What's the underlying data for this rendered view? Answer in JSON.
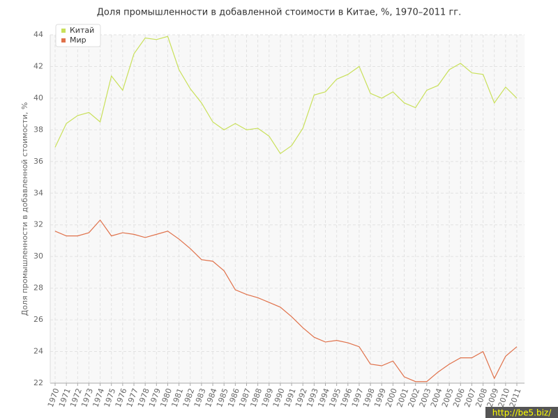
{
  "chart_data": {
    "type": "line",
    "title": "Доля промышленности в добавленной стоимости в Китае, %, 1970–2011 гг.",
    "y_label": "Доля промышленности в добавленной стоимости, %",
    "categories": [
      "1970",
      "1971",
      "1972",
      "1973",
      "1974",
      "1975",
      "1976",
      "1977",
      "1978",
      "1979",
      "1980",
      "1981",
      "1982",
      "1983",
      "1984",
      "1985",
      "1986",
      "1987",
      "1988",
      "1989",
      "1990",
      "1991",
      "1992",
      "1993",
      "1994",
      "1995",
      "1996",
      "1997",
      "1998",
      "1999",
      "2000",
      "2001",
      "2002",
      "2003",
      "2004",
      "2005",
      "2006",
      "2007",
      "2008",
      "2009",
      "2010",
      "2011"
    ],
    "series": [
      {
        "name": "Китай",
        "color": "#c9e05a",
        "values": [
          36.9,
          38.4,
          38.9,
          39.1,
          38.5,
          41.4,
          40.5,
          42.8,
          43.8,
          43.7,
          43.9,
          41.8,
          40.6,
          39.7,
          38.5,
          38.0,
          38.4,
          38.0,
          38.1,
          37.6,
          36.5,
          37.0,
          38.1,
          40.2,
          40.4,
          41.2,
          41.5,
          42.0,
          40.3,
          40.0,
          40.4,
          39.7,
          39.4,
          40.5,
          40.8,
          41.8,
          42.2,
          41.6,
          41.5,
          39.7,
          40.7,
          40.0
        ]
      },
      {
        "name": "Мир",
        "color": "#e0714a",
        "values": [
          31.6,
          31.3,
          31.3,
          31.5,
          32.3,
          31.3,
          31.5,
          31.4,
          31.2,
          31.4,
          31.6,
          31.1,
          30.5,
          29.8,
          29.7,
          29.1,
          27.9,
          27.6,
          27.4,
          27.1,
          26.8,
          26.2,
          25.5,
          24.9,
          24.6,
          24.7,
          24.55,
          24.3,
          23.2,
          23.1,
          23.4,
          22.4,
          22.1,
          22.1,
          22.7,
          23.2,
          23.6,
          23.6,
          24.0,
          22.3,
          23.7,
          24.3
        ]
      }
    ],
    "ylim": [
      22,
      44
    ],
    "yticks": [
      22,
      24,
      26,
      28,
      30,
      32,
      34,
      36,
      38,
      40,
      42,
      44
    ],
    "grid": true,
    "legend": "upper left",
    "watermark": "http://be5.biz/"
  }
}
